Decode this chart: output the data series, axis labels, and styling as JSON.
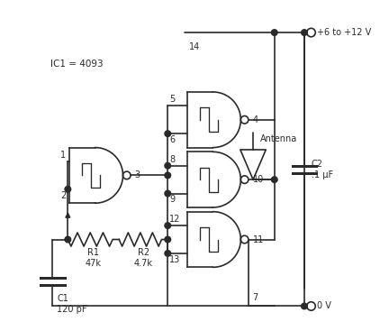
{
  "bg_color": "#ffffff",
  "line_color": "#2a2a2a",
  "text_color": "#2a2a2a",
  "ic1_label": "IC1 = 4093",
  "antenna_label": "Antenna",
  "vcc_label": "+6 to +12 V",
  "gnd_label": "0 V"
}
